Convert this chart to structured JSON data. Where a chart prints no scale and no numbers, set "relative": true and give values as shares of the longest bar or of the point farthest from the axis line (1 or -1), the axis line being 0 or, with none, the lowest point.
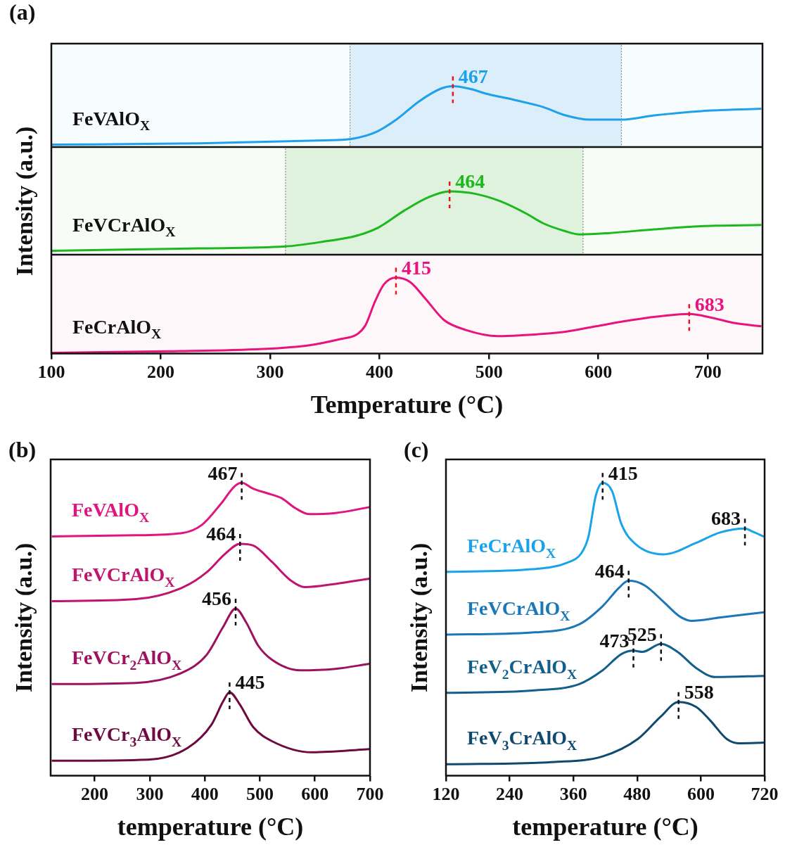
{
  "chart_data": [
    {
      "type": "line",
      "title": "(a)",
      "relative": true,
      "xlim": [
        100,
        750
      ],
      "xticks": [
        100,
        200,
        300,
        400,
        500,
        600,
        700
      ],
      "tick_labels": false,
      "series": [
        {
          "name": "FeVAlO$_{X}$",
          "color": "#1ea0ea",
          "x": [
            100,
            235,
            350,
            373,
            396,
            416,
            436,
            456,
            467,
            482,
            499,
            522,
            549,
            570,
            592,
            621,
            651,
            694,
            749
          ],
          "values": [
            0.04,
            0.06,
            0.11,
            0.13,
            0.24,
            0.46,
            0.75,
            0.96,
            1.0,
            0.96,
            0.87,
            0.78,
            0.66,
            0.52,
            0.45,
            0.45,
            0.52,
            0.59,
            0.63
          ]
        }
      ],
      "bands": [
        {
          "axis": "x",
          "from": 373,
          "to": 621,
          "color": "#4aa8e0"
        }
      ],
      "annotations": [
        {
          "text": "467",
          "x": 467,
          "y": 1.0
        }
      ]
    },
    {
      "type": "line",
      "ylabel": "Intensity (a.u.)",
      "relative": true,
      "xlim": [
        100,
        750
      ],
      "xticks": [
        100,
        200,
        300,
        400,
        500,
        600,
        700
      ],
      "tick_labels": false,
      "series": [
        {
          "name": "FeVCrAlO$_{X}$",
          "color": "#1db81d",
          "x": [
            100,
            235,
            314,
            350,
            379,
            399,
            422,
            445,
            464,
            488,
            511,
            534,
            549,
            570,
            583,
            609,
            651,
            694,
            749
          ],
          "values": [
            0.06,
            0.1,
            0.13,
            0.21,
            0.3,
            0.43,
            0.69,
            0.91,
            1.0,
            0.96,
            0.84,
            0.65,
            0.5,
            0.37,
            0.32,
            0.34,
            0.4,
            0.45,
            0.47
          ]
        }
      ],
      "bands": [
        {
          "axis": "x",
          "from": 314,
          "to": 586,
          "color": "#5cc05c"
        }
      ],
      "annotations": [
        {
          "text": "464",
          "x": 464,
          "y": 1.0
        }
      ]
    },
    {
      "type": "line",
      "xlabel": "Temperature (°C)",
      "relative": true,
      "xlim": [
        100,
        750
      ],
      "xticks": [
        100,
        200,
        300,
        400,
        500,
        600,
        700
      ],
      "tick_labels": "x",
      "series": [
        {
          "name": "FeCrAlO$_{X}$",
          "color": "#e8137d",
          "x": [
            100,
            206,
            293,
            336,
            364,
            379,
            387,
            396,
            404,
            415,
            428,
            442,
            459,
            479,
            508,
            528,
            566,
            598,
            630,
            662,
            683,
            704,
            725,
            749
          ],
          "values": [
            0.01,
            0.03,
            0.06,
            0.11,
            0.19,
            0.25,
            0.37,
            0.69,
            0.91,
            1.0,
            0.94,
            0.72,
            0.44,
            0.31,
            0.23,
            0.24,
            0.28,
            0.36,
            0.44,
            0.5,
            0.52,
            0.47,
            0.4,
            0.36
          ]
        }
      ],
      "annotations": [
        {
          "text": "415",
          "x": 415,
          "y": 1.0
        },
        {
          "text": "683",
          "x": 683,
          "y": 0.52
        }
      ]
    },
    {
      "type": "line",
      "title": "(b)",
      "xlabel": "temperature (°C)",
      "ylabel": "Intensity (a.u.)",
      "relative": true,
      "xlim": [
        120,
        700
      ],
      "xticks": [
        200,
        300,
        400,
        500,
        600,
        700
      ],
      "tick_labels": "x",
      "series": [
        {
          "name": "FeVAlO$_{X}$",
          "color": "#e0157f",
          "x": [
            122,
            275,
            360,
            395,
            429,
            454,
            467,
            488,
            514,
            539,
            565,
            590,
            637,
            699
          ],
          "values": [
            0.817,
            0.821,
            0.829,
            0.857,
            0.928,
            0.988,
            1.0,
            0.98,
            0.964,
            0.948,
            0.913,
            0.893,
            0.897,
            0.917
          ]
        },
        {
          "name": "FeVCrAlO$_{X}$",
          "color": "#c0146f",
          "x": [
            122,
            275,
            360,
            403,
            437,
            464,
            488,
            522,
            556,
            582,
            637,
            699
          ],
          "values": [
            0.596,
            0.603,
            0.643,
            0.694,
            0.758,
            0.792,
            0.786,
            0.73,
            0.667,
            0.644,
            0.655,
            0.673
          ]
        },
        {
          "name": "FeVCr$_{2}$AlO$_{X}$",
          "color": "#9c125e",
          "x": [
            122,
            275,
            360,
            403,
            433,
            456,
            475,
            497,
            522,
            573,
            637,
            699
          ],
          "values": [
            0.313,
            0.317,
            0.353,
            0.412,
            0.507,
            0.571,
            0.524,
            0.444,
            0.396,
            0.36,
            0.365,
            0.382
          ]
        },
        {
          "name": "FeVCr$_{3}$AlO$_{X}$",
          "color": "#6e0a40",
          "x": [
            122,
            297,
            369,
            412,
            433,
            445,
            463,
            488,
            522,
            595,
            699
          ],
          "values": [
            0.051,
            0.055,
            0.095,
            0.174,
            0.253,
            0.285,
            0.245,
            0.166,
            0.118,
            0.08,
            0.091
          ]
        }
      ],
      "annotations": [
        {
          "text": "467",
          "x": 467,
          "y": 1.0
        },
        {
          "text": "464",
          "x": 464,
          "y": 0.792
        },
        {
          "text": "456",
          "x": 456,
          "y": 0.571
        },
        {
          "text": "445",
          "x": 445,
          "y": 0.285
        }
      ]
    },
    {
      "type": "line",
      "title": "(c)",
      "xlabel": "temperature (°C)",
      "ylabel": "Intensity (a.u.)",
      "relative": true,
      "xlim": [
        120,
        720
      ],
      "xticks": [
        120,
        240,
        360,
        480,
        600,
        720
      ],
      "tick_labels": "x",
      "series": [
        {
          "name": "FeCrAlO$_{X}$",
          "color": "#1aa3e8",
          "x": [
            121,
            282,
            349,
            375,
            388,
            402,
            415,
            433,
            450,
            477,
            530,
            591,
            635,
            683,
            697,
            719
          ],
          "values": [
            0.696,
            0.705,
            0.728,
            0.76,
            0.814,
            0.955,
            1.0,
            0.971,
            0.861,
            0.791,
            0.756,
            0.795,
            0.83,
            0.844,
            0.834,
            0.816
          ]
        },
        {
          "name": "FeVCrAlO$_{X}$",
          "color": "#1a78b8",
          "x": [
            121,
            282,
            371,
            415,
            446,
            464,
            494,
            529,
            560,
            582,
            635,
            719
          ],
          "values": [
            0.482,
            0.489,
            0.517,
            0.579,
            0.642,
            0.666,
            0.65,
            0.595,
            0.544,
            0.529,
            0.54,
            0.558
          ]
        },
        {
          "name": "FeV$_{2}$CrAlO$_{X}$",
          "color": "#125f8c",
          "x": [
            121,
            282,
            371,
            415,
            450,
            473,
            490,
            525,
            556,
            591,
            627,
            719
          ],
          "values": [
            0.283,
            0.291,
            0.313,
            0.36,
            0.415,
            0.427,
            0.423,
            0.45,
            0.423,
            0.368,
            0.337,
            0.341
          ]
        },
        {
          "name": "FeV$_{3}$CrAlO$_{X}$",
          "color": "#0f4a6e",
          "x": [
            121,
            326,
            415,
            481,
            525,
            558,
            591,
            618,
            649,
            671,
            719
          ],
          "values": [
            0.039,
            0.047,
            0.066,
            0.125,
            0.203,
            0.252,
            0.235,
            0.188,
            0.125,
            0.111,
            0.113
          ]
        }
      ],
      "annotations": [
        {
          "text": "415",
          "x": 415,
          "y": 1.0
        },
        {
          "text": "683",
          "x": 683,
          "y": 0.844
        },
        {
          "text": "464",
          "x": 464,
          "y": 0.666
        },
        {
          "text": "473",
          "x": 473,
          "y": 0.427
        },
        {
          "text": "525",
          "x": 525,
          "y": 0.45
        },
        {
          "text": "558",
          "x": 558,
          "y": 0.252
        }
      ]
    }
  ]
}
